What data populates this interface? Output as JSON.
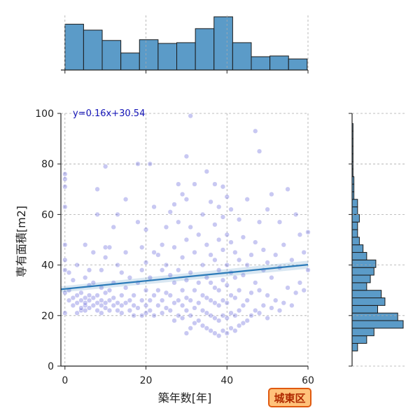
{
  "chart_data": {
    "type": "scatter",
    "xlabel": "築年数[年]",
    "ylabel": "専有面積[m2]",
    "xlim": [
      -1,
      60
    ],
    "ylim": [
      0,
      100
    ],
    "xticks": [
      0,
      20,
      40,
      60
    ],
    "yticks": [
      0,
      20,
      40,
      60,
      80,
      100
    ],
    "grid": true,
    "annotation": "y=0.16x+30.54",
    "regression": {
      "slope": 0.16,
      "intercept": 30.54
    },
    "badge": "城東区",
    "colors": {
      "points": "#3a3ad0",
      "regression": "#2a7ab8",
      "bars": "#5b9bc8",
      "badge_bg": "#ffc27a",
      "badge_border": "#e05a10",
      "badge_text": "#b02a00"
    },
    "top_histogram": {
      "bin_edges": [
        0,
        4.6,
        9.2,
        13.8,
        18.4,
        23.0,
        27.6,
        32.2,
        36.8,
        41.4,
        46.0,
        50.6,
        55.2,
        59.8
      ],
      "counts": [
        62,
        54,
        40,
        23,
        41,
        36,
        37,
        56,
        72,
        37,
        18,
        19,
        15
      ]
    },
    "right_histogram": {
      "bin_edges": [
        6,
        9,
        12,
        15,
        18,
        21,
        24,
        27,
        30,
        33,
        36,
        39,
        42,
        45,
        48,
        51,
        54,
        57,
        60,
        63,
        66,
        69,
        72,
        75,
        78,
        81,
        84,
        87,
        90,
        93,
        96
      ],
      "counts": [
        3,
        8,
        12,
        28,
        25,
        14,
        18,
        16,
        8,
        10,
        12,
        13,
        8,
        6,
        4,
        3,
        3,
        4,
        3,
        3,
        1,
        1,
        1,
        0.5,
        0.5,
        0.5,
        0.5,
        0.5,
        0.5,
        0.5
      ]
    },
    "points": [
      [
        0,
        21
      ],
      [
        0,
        29
      ],
      [
        0,
        38
      ],
      [
        0,
        42
      ],
      [
        0,
        48
      ],
      [
        0,
        63
      ],
      [
        0,
        71
      ],
      [
        0,
        76
      ],
      [
        0,
        74
      ],
      [
        1,
        30
      ],
      [
        1,
        26
      ],
      [
        1,
        37
      ],
      [
        2,
        34
      ],
      [
        2,
        24
      ],
      [
        2,
        27
      ],
      [
        3,
        25
      ],
      [
        3,
        21
      ],
      [
        3,
        28
      ],
      [
        3,
        40
      ],
      [
        4,
        22
      ],
      [
        4,
        23
      ],
      [
        4,
        26
      ],
      [
        4,
        29
      ],
      [
        5,
        22
      ],
      [
        5,
        24
      ],
      [
        5,
        25
      ],
      [
        5,
        27
      ],
      [
        5,
        35
      ],
      [
        5,
        48
      ],
      [
        6,
        23
      ],
      [
        6,
        26
      ],
      [
        6,
        28
      ],
      [
        6,
        32
      ],
      [
        6,
        38
      ],
      [
        7,
        24
      ],
      [
        7,
        27
      ],
      [
        7,
        33
      ],
      [
        7,
        45
      ],
      [
        8,
        22
      ],
      [
        8,
        25
      ],
      [
        8,
        28
      ],
      [
        8,
        60
      ],
      [
        8,
        70
      ],
      [
        9,
        21
      ],
      [
        9,
        24
      ],
      [
        9,
        26
      ],
      [
        9,
        31
      ],
      [
        9,
        38
      ],
      [
        10,
        23
      ],
      [
        10,
        25
      ],
      [
        10,
        29
      ],
      [
        10,
        43
      ],
      [
        10,
        47
      ],
      [
        10,
        79
      ],
      [
        11,
        22
      ],
      [
        11,
        26
      ],
      [
        11,
        30
      ],
      [
        11,
        47
      ],
      [
        12,
        24
      ],
      [
        12,
        27
      ],
      [
        12,
        33
      ],
      [
        12,
        55
      ],
      [
        13,
        22
      ],
      [
        13,
        25
      ],
      [
        13,
        40
      ],
      [
        13,
        60
      ],
      [
        14,
        21
      ],
      [
        14,
        24
      ],
      [
        14,
        28
      ],
      [
        14,
        37
      ],
      [
        15,
        25
      ],
      [
        15,
        31
      ],
      [
        15,
        45
      ],
      [
        15,
        66
      ],
      [
        16,
        22
      ],
      [
        16,
        26
      ],
      [
        16,
        35
      ],
      [
        17,
        24
      ],
      [
        17,
        28
      ],
      [
        17,
        20
      ],
      [
        18,
        23
      ],
      [
        18,
        33
      ],
      [
        18,
        57
      ],
      [
        18,
        80
      ],
      [
        19,
        20
      ],
      [
        19,
        26
      ],
      [
        19,
        38
      ],
      [
        19,
        47
      ],
      [
        20,
        21
      ],
      [
        20,
        24
      ],
      [
        20,
        30
      ],
      [
        20,
        41
      ],
      [
        20,
        54
      ],
      [
        21,
        22
      ],
      [
        21,
        26
      ],
      [
        21,
        35
      ],
      [
        21,
        80
      ],
      [
        22,
        20
      ],
      [
        22,
        28
      ],
      [
        22,
        45
      ],
      [
        22,
        63
      ],
      [
        23,
        24
      ],
      [
        23,
        30
      ],
      [
        23,
        44
      ],
      [
        24,
        21
      ],
      [
        24,
        26
      ],
      [
        24,
        38
      ],
      [
        24,
        48
      ],
      [
        25,
        23
      ],
      [
        25,
        29
      ],
      [
        25,
        40
      ],
      [
        25,
        55
      ],
      [
        26,
        22
      ],
      [
        26,
        28
      ],
      [
        26,
        36
      ],
      [
        26,
        61
      ],
      [
        27,
        18
      ],
      [
        27,
        25
      ],
      [
        27,
        33
      ],
      [
        27,
        47
      ],
      [
        27,
        64
      ],
      [
        28,
        20
      ],
      [
        28,
        26
      ],
      [
        28,
        38
      ],
      [
        28,
        57
      ],
      [
        28,
        72
      ],
      [
        29,
        19
      ],
      [
        29,
        24
      ],
      [
        29,
        30
      ],
      [
        29,
        43
      ],
      [
        29,
        68
      ],
      [
        30,
        13
      ],
      [
        30,
        22
      ],
      [
        30,
        27
      ],
      [
        30,
        34
      ],
      [
        30,
        50
      ],
      [
        30,
        66
      ],
      [
        30,
        83
      ],
      [
        31,
        15
      ],
      [
        31,
        20
      ],
      [
        31,
        26
      ],
      [
        31,
        37
      ],
      [
        31,
        55
      ],
      [
        31,
        99
      ],
      [
        32,
        17
      ],
      [
        32,
        23
      ],
      [
        32,
        30
      ],
      [
        32,
        45
      ],
      [
        32,
        72
      ],
      [
        33,
        18
      ],
      [
        33,
        25
      ],
      [
        33,
        33
      ],
      [
        33,
        52
      ],
      [
        34,
        16
      ],
      [
        34,
        22
      ],
      [
        34,
        28
      ],
      [
        34,
        40
      ],
      [
        34,
        60
      ],
      [
        35,
        15
      ],
      [
        35,
        21
      ],
      [
        35,
        27
      ],
      [
        35,
        35
      ],
      [
        35,
        48
      ],
      [
        35,
        77
      ],
      [
        36,
        14
      ],
      [
        36,
        20
      ],
      [
        36,
        26
      ],
      [
        36,
        33
      ],
      [
        36,
        44
      ],
      [
        36,
        65
      ],
      [
        37,
        13
      ],
      [
        37,
        19
      ],
      [
        37,
        25
      ],
      [
        37,
        31
      ],
      [
        37,
        42
      ],
      [
        37,
        56
      ],
      [
        37,
        72
      ],
      [
        38,
        12
      ],
      [
        38,
        18
      ],
      [
        38,
        24
      ],
      [
        38,
        30
      ],
      [
        38,
        38
      ],
      [
        38,
        50
      ],
      [
        38,
        63
      ],
      [
        39,
        14
      ],
      [
        39,
        20
      ],
      [
        39,
        26
      ],
      [
        39,
        34
      ],
      [
        39,
        46
      ],
      [
        39,
        59
      ],
      [
        39,
        71
      ],
      [
        40,
        13
      ],
      [
        40,
        19
      ],
      [
        40,
        25
      ],
      [
        40,
        32
      ],
      [
        40,
        40
      ],
      [
        40,
        52
      ],
      [
        40,
        67
      ],
      [
        41,
        15
      ],
      [
        41,
        21
      ],
      [
        41,
        28
      ],
      [
        41,
        37
      ],
      [
        41,
        49
      ],
      [
        41,
        62
      ],
      [
        42,
        14
      ],
      [
        42,
        20
      ],
      [
        42,
        27
      ],
      [
        42,
        35
      ],
      [
        42,
        45
      ],
      [
        43,
        16
      ],
      [
        43,
        22
      ],
      [
        43,
        30
      ],
      [
        43,
        42
      ],
      [
        43,
        58
      ],
      [
        44,
        17
      ],
      [
        44,
        24
      ],
      [
        44,
        36
      ],
      [
        44,
        51
      ],
      [
        45,
        18
      ],
      [
        45,
        26
      ],
      [
        45,
        40
      ],
      [
        45,
        66
      ],
      [
        46,
        20
      ],
      [
        46,
        29
      ],
      [
        46,
        44
      ],
      [
        47,
        22
      ],
      [
        47,
        33
      ],
      [
        47,
        49
      ],
      [
        47,
        93
      ],
      [
        48,
        21
      ],
      [
        48,
        30
      ],
      [
        48,
        57
      ],
      [
        48,
        85
      ],
      [
        49,
        24
      ],
      [
        49,
        38
      ],
      [
        49,
        46
      ],
      [
        50,
        19
      ],
      [
        50,
        28
      ],
      [
        50,
        41
      ],
      [
        50,
        62
      ],
      [
        51,
        23
      ],
      [
        51,
        35
      ],
      [
        51,
        68
      ],
      [
        52,
        26
      ],
      [
        52,
        44
      ],
      [
        53,
        22
      ],
      [
        53,
        39
      ],
      [
        53,
        57
      ],
      [
        54,
        25
      ],
      [
        54,
        48
      ],
      [
        55,
        31
      ],
      [
        55,
        70
      ],
      [
        56,
        24
      ],
      [
        56,
        42
      ],
      [
        57,
        29
      ],
      [
        57,
        60
      ],
      [
        58,
        33
      ],
      [
        58,
        52
      ],
      [
        59,
        30
      ],
      [
        59,
        45
      ],
      [
        60,
        53
      ],
      [
        60,
        38
      ]
    ]
  }
}
